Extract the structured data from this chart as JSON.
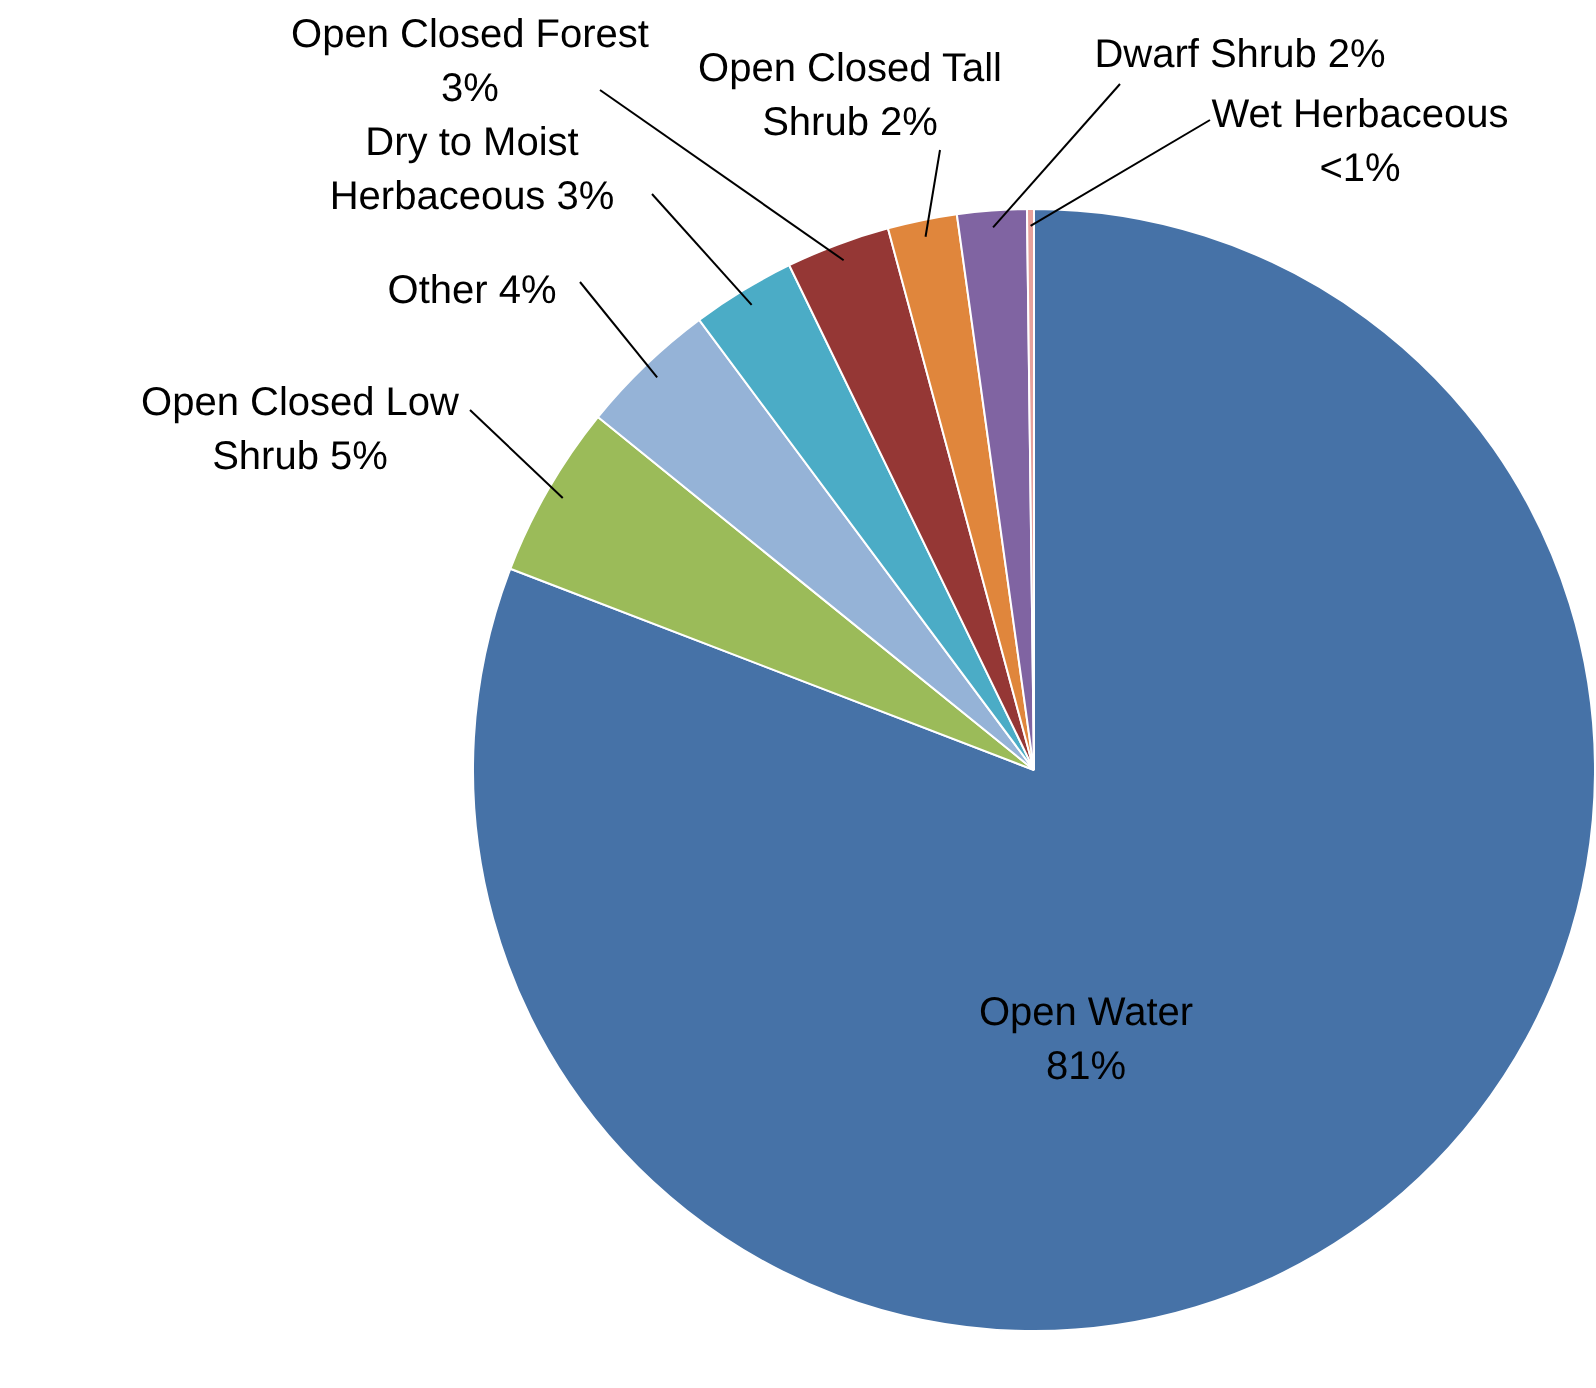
{
  "chart_data": {
    "type": "pie",
    "categories": [
      "Open Water",
      "Open Closed Low Shrub",
      "Other",
      "Dry to Moist Herbaceous",
      "Open Closed Forest",
      "Open Closed Tall Shrub",
      "Dwarf Shrub",
      "Wet Herbaceous"
    ],
    "values": [
      81,
      5,
      4,
      3,
      3,
      2,
      2,
      0.2
    ],
    "value_labels": [
      "81%",
      "5%",
      "4%",
      "3%",
      "3%",
      "2%",
      "2%",
      "<1%"
    ],
    "colors": [
      "#4672a7",
      "#9bbb59",
      "#95b3d7",
      "#4bacc6",
      "#953735",
      "#e0863c",
      "#8064a2",
      "#e8a29c"
    ],
    "legend": false
  }
}
